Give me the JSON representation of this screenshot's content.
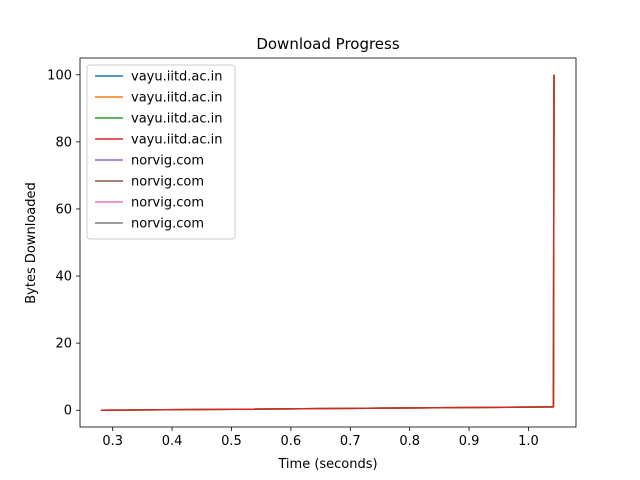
{
  "chart_data": {
    "type": "line",
    "title": "Download Progress",
    "xlabel": "Time (seconds)",
    "ylabel": "Bytes Downloaded",
    "xlim": [
      0.245,
      1.08
    ],
    "ylim": [
      -5,
      105
    ],
    "xticks": [
      0.3,
      0.4,
      0.5,
      0.6,
      0.7,
      0.8,
      0.9,
      1.0
    ],
    "xtick_labels": [
      "0.3",
      "0.4",
      "0.5",
      "0.6",
      "0.7",
      "0.8",
      "0.9",
      "1.0"
    ],
    "yticks": [
      0,
      20,
      40,
      60,
      80,
      100
    ],
    "ytick_labels": [
      "0",
      "20",
      "40",
      "60",
      "80",
      "100"
    ],
    "grid": false,
    "legend_position": "upper-left",
    "series": [
      {
        "name": "vayu.iitd.ac.in",
        "color": "#1f77b4",
        "x": [
          0.28,
          1.042,
          1.043
        ],
        "y": [
          0,
          1,
          100
        ]
      },
      {
        "name": "vayu.iitd.ac.in",
        "color": "#ff7f0e",
        "x": [
          0.28,
          1.042,
          1.043
        ],
        "y": [
          0,
          1,
          100
        ]
      },
      {
        "name": "vayu.iitd.ac.in",
        "color": "#2ca02c",
        "x": [
          0.28,
          1.042,
          1.043
        ],
        "y": [
          0,
          1,
          100
        ]
      },
      {
        "name": "vayu.iitd.ac.in",
        "color": "#d62728",
        "x": [
          0.28,
          1.042,
          1.043
        ],
        "y": [
          0,
          1,
          100
        ]
      },
      {
        "name": "norvig.com",
        "color": "#9467bd",
        "x": [],
        "y": []
      },
      {
        "name": "norvig.com",
        "color": "#8c564b",
        "x": [],
        "y": []
      },
      {
        "name": "norvig.com",
        "color": "#e377c2",
        "x": [],
        "y": []
      },
      {
        "name": "norvig.com",
        "color": "#7f7f7f",
        "x": [],
        "y": []
      }
    ]
  }
}
